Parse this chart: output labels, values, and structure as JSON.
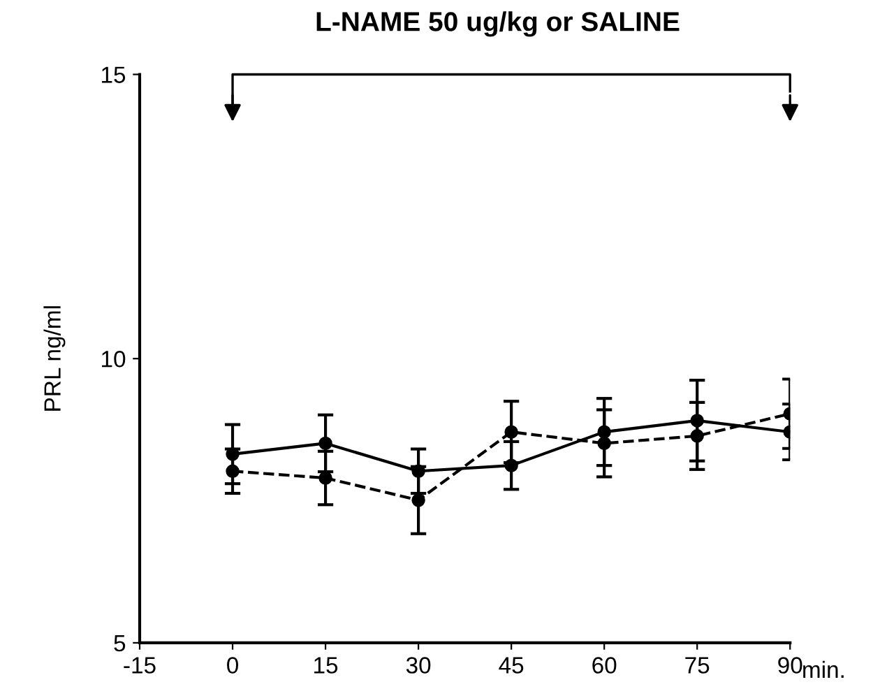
{
  "chart_data": {
    "type": "line",
    "title": "L-NAME 50 ug/kg or SALINE",
    "ylabel": "PRL ng/ml",
    "annotations": [
      "min."
    ],
    "x": [
      0,
      15,
      30,
      45,
      60,
      75,
      90
    ],
    "series": [
      {
        "color": "#000000",
        "line_style": "solid",
        "values": [
          8.32,
          8.51,
          8.02,
          8.12,
          8.71,
          8.91,
          8.71
        ],
        "errors": [
          0.52,
          0.5,
          0.39,
          0.42,
          0.59,
          0.71,
          0.49
        ]
      },
      {
        "color": "#000000",
        "line_style": "dashed",
        "values": [
          8.02,
          7.9,
          7.51,
          8.71,
          8.51,
          8.64,
          9.03
        ],
        "errors": [
          0.39,
          0.47,
          0.59,
          0.54,
          0.59,
          0.59,
          0.61
        ]
      }
    ],
    "xlim": [
      -15,
      90
    ],
    "xticks": [
      -15,
      0,
      15,
      30,
      45,
      60,
      75,
      90
    ],
    "ylim": [
      5,
      15
    ],
    "yticks": [
      5,
      10,
      15
    ],
    "marker": "circle",
    "grid": false,
    "legend": false
  }
}
